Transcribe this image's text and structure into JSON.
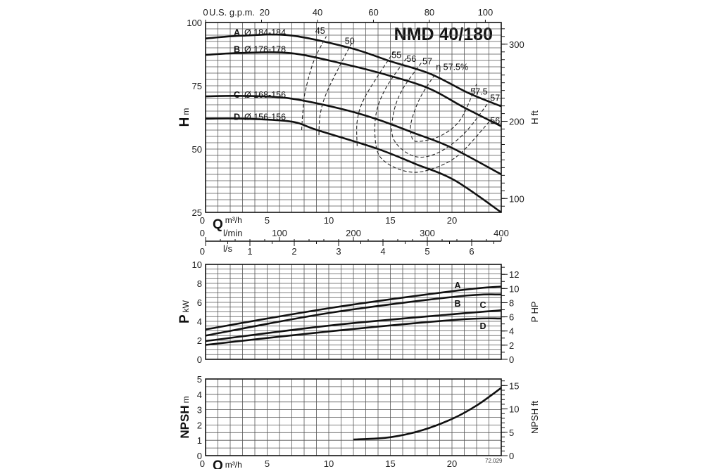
{
  "model_title": "NMD 40/180",
  "drawing_code": "72.029",
  "chart_data": [
    {
      "type": "line",
      "panel": "head",
      "ylabel": "H",
      "ylabel_unit": "m",
      "y2label": "H",
      "y2label_unit": "ft",
      "xlabel": "Q",
      "xlabel_unit": "m³/h",
      "xlim": [
        0,
        24
      ],
      "ylim": [
        25,
        100
      ],
      "y_ticks": [
        25,
        50,
        75,
        100
      ],
      "y2_ticks": [
        100,
        200,
        300
      ],
      "x_ticks": [
        0,
        5,
        10,
        15,
        20
      ],
      "gpm_label": "U.S. g.p.m.",
      "gpm_ticks": [
        0,
        20,
        40,
        60,
        80,
        100
      ],
      "lmin_label": "l/min",
      "lmin_ticks": [
        0,
        100,
        200,
        300,
        400
      ],
      "ls_label": "l/s",
      "ls_ticks": [
        0,
        1,
        2,
        3,
        4,
        5,
        6
      ],
      "grid": true,
      "series": [
        {
          "name": "A",
          "label": "Ø 184-184",
          "points": [
            [
              0,
              93.7
            ],
            [
              3,
              94.8
            ],
            [
              6.9,
              94.9
            ],
            [
              11.7,
              90
            ],
            [
              15,
              84.7
            ],
            [
              18.2,
              79.8
            ],
            [
              21.4,
              72
            ],
            [
              24,
              66.9
            ]
          ]
        },
        {
          "name": "B",
          "label": "Ø 178-178",
          "points": [
            [
              0,
              87.2
            ],
            [
              3,
              88
            ],
            [
              6.9,
              87.9
            ],
            [
              10.9,
              84
            ],
            [
              15,
              78.9
            ],
            [
              18.2,
              73.8
            ],
            [
              21,
              66.4
            ],
            [
              24,
              59
            ]
          ]
        },
        {
          "name": "C",
          "label": "Ø 168-156",
          "points": [
            [
              0,
              70.8
            ],
            [
              3,
              71
            ],
            [
              6.7,
              70.1
            ],
            [
              10.9,
              66
            ],
            [
              13.9,
              61.8
            ],
            [
              17,
              56.2
            ],
            [
              19.9,
              50.7
            ],
            [
              24,
              40
            ]
          ]
        },
        {
          "name": "D",
          "label": "Ø 156-156",
          "points": [
            [
              0,
              62
            ],
            [
              3,
              62
            ],
            [
              6.9,
              60.9
            ],
            [
              9,
              57.6
            ],
            [
              13.9,
              50.2
            ],
            [
              17,
              44.2
            ],
            [
              20.2,
              37.7
            ],
            [
              24,
              25
            ]
          ]
        }
      ],
      "efficiency_curves": [
        {
          "label": "45",
          "points": [
            [
              7.8,
              57.5
            ],
            [
              7.9,
              65
            ],
            [
              8.1,
              73
            ],
            [
              8.8,
              85
            ],
            [
              9.8,
              94.5
            ]
          ]
        },
        {
          "label": "50",
          "points": [
            [
              9.2,
              55.5
            ],
            [
              9.3,
              63.6
            ],
            [
              9.8,
              72
            ],
            [
              10.9,
              83
            ],
            [
              11.9,
              92.3
            ]
          ]
        },
        {
          "label": "55",
          "points": [
            [
              12.3,
              51.2
            ],
            [
              12.3,
              60.9
            ],
            [
              12.8,
              69.2
            ],
            [
              14,
              79
            ],
            [
              15.3,
              88.6
            ]
          ]
        },
        {
          "label": "56",
          "points": [
            [
              16.3,
              85.8
            ],
            [
              14.6,
              73.8
            ],
            [
              13.8,
              62.7
            ],
            [
              13.9,
              49.8
            ],
            [
              14.8,
              44.2
            ],
            [
              16.5,
              41
            ],
            [
              18.2,
              41.9
            ],
            [
              20.5,
              47.5
            ],
            [
              23.2,
              61.8
            ]
          ]
        },
        {
          "label": "57",
          "points": [
            [
              17.5,
              84
            ],
            [
              15.9,
              72.9
            ],
            [
              15.2,
              62.7
            ],
            [
              15.3,
              53.5
            ],
            [
              16.9,
              47.2
            ],
            [
              18.8,
              48.4
            ],
            [
              21,
              56.2
            ],
            [
              23,
              68.7
            ]
          ]
        },
        {
          "label": "57.5",
          "points": [
            [
              18.6,
              79.4
            ],
            [
              17.4,
              70.1
            ],
            [
              16.7,
              60.9
            ],
            [
              16.7,
              55.3
            ],
            [
              17.2,
              53
            ],
            [
              19.1,
              55.3
            ],
            [
              20.7,
              61.8
            ],
            [
              22,
              75.7
            ]
          ]
        }
      ],
      "efficiency_annotations": {
        "peak_label": "η 57.5%",
        "right_labels": [
          "57.5",
          "57",
          "56"
        ]
      }
    },
    {
      "type": "line",
      "panel": "power",
      "ylabel": "P",
      "ylabel_unit": "kW",
      "y2label": "P HP",
      "xlim": [
        0,
        24
      ],
      "ylim": [
        0,
        10
      ],
      "y_ticks": [
        0,
        2,
        4,
        6,
        8,
        10
      ],
      "y2_ticks": [
        0,
        2,
        4,
        6,
        8,
        10,
        12
      ],
      "grid": true,
      "series": [
        {
          "name": "A",
          "points": [
            [
              0,
              3.15
            ],
            [
              10.1,
              5.4
            ],
            [
              20.5,
              7.25
            ],
            [
              24,
              7.67
            ]
          ]
        },
        {
          "name": "B",
          "points": [
            [
              0,
              2.5
            ],
            [
              10.1,
              4.9
            ],
            [
              20.5,
              6.63
            ],
            [
              24,
              6.83
            ]
          ]
        },
        {
          "name": "C",
          "points": [
            [
              0,
              1.92
            ],
            [
              10.1,
              3.56
            ],
            [
              20.5,
              4.8
            ],
            [
              24,
              5.16
            ]
          ]
        },
        {
          "name": "D",
          "points": [
            [
              0,
              1.52
            ],
            [
              10.1,
              2.95
            ],
            [
              20.5,
              4.18
            ],
            [
              24,
              4.3
            ]
          ]
        }
      ]
    },
    {
      "type": "line",
      "panel": "npsh",
      "ylabel": "NPSH",
      "ylabel_unit": "m",
      "y2label": "NPSH ft",
      "xlabel": "Q",
      "xlabel_unit": "m³/h",
      "xlim": [
        0,
        24
      ],
      "ylim": [
        0,
        5
      ],
      "y_ticks": [
        0,
        1,
        2,
        3,
        4,
        5
      ],
      "y2_ticks": [
        0,
        5,
        10,
        15
      ],
      "x_ticks": [
        0,
        5,
        10,
        15,
        20
      ],
      "grid": true,
      "series": [
        {
          "points": [
            [
              12,
              1.05
            ],
            [
              15,
              1.2
            ],
            [
              17.6,
              1.66
            ],
            [
              20.1,
              2.43
            ],
            [
              22,
              3.27
            ],
            [
              24,
              4.42
            ]
          ]
        }
      ]
    }
  ]
}
